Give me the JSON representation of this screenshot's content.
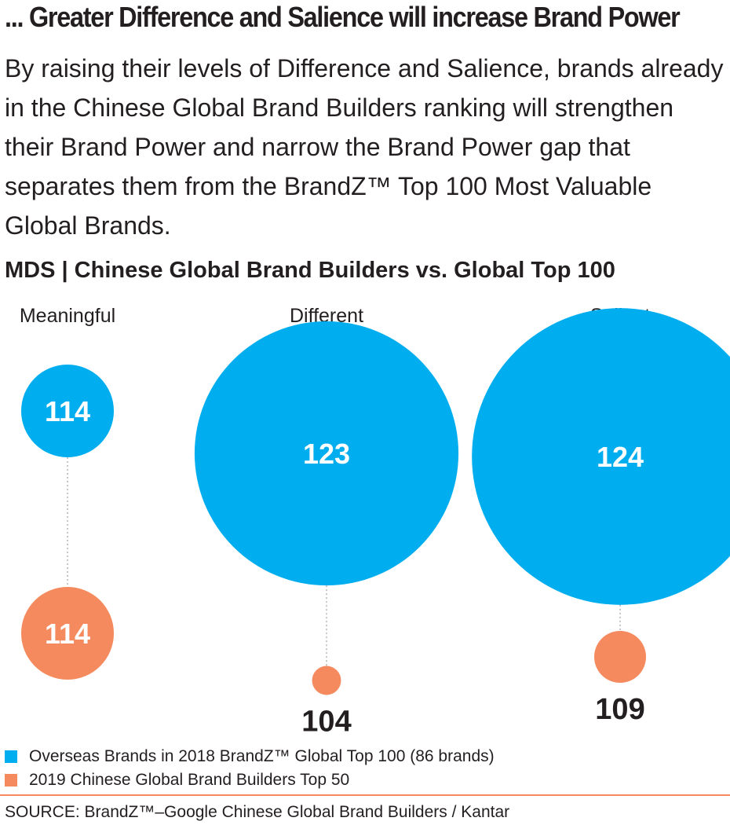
{
  "headline": "... Greater Difference and Salience will increase Brand Power",
  "intro": "By raising their levels of Difference and Salience, brands already in the Chinese Global Brand Builders ranking will strengthen their Brand Power and narrow the Brand Power gap that separates them from the BrandZ™ Top 100 Most Valuable Global Brands.",
  "colors": {
    "overseas": "#00aeef",
    "chinese": "#f58a5e",
    "rule": "#f58a5e",
    "text": "#231f20",
    "connector": "#b3b3b3"
  },
  "legend": {
    "overseas": "Overseas Brands in 2018 BrandZ™ Global Top 100 (86 brands)",
    "chinese": "2019 Chinese Global Brand Builders Top 50"
  },
  "source": "SOURCE: BrandZ™–Google Chinese Global Brand Builders / Kantar",
  "chart_data": {
    "type": "bubble",
    "title": "MDS | Chinese Global Brand Builders vs. Global Top 100",
    "categories": [
      "Meaningful",
      "Different",
      "Salient"
    ],
    "series": [
      {
        "name": "Overseas Brands in 2018 BrandZ™ Global Top 100 (86 brands)",
        "key": "overseas",
        "values": [
          114,
          123,
          124
        ]
      },
      {
        "name": "2019 Chinese Global Brand Builders Top 50",
        "key": "chinese",
        "values": [
          114,
          104,
          109
        ]
      }
    ],
    "labels": {
      "overseas": [
        "114",
        "123",
        "124"
      ],
      "chinese": [
        "114",
        "104",
        "109"
      ]
    }
  }
}
